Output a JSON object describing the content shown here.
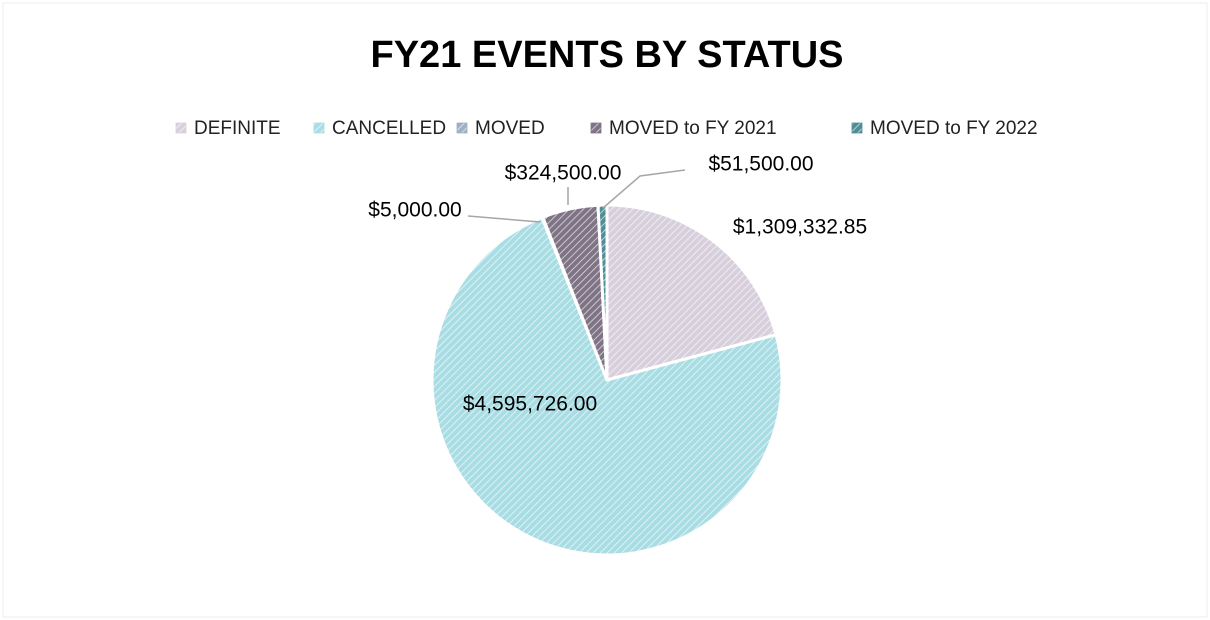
{
  "chart_data": {
    "type": "pie",
    "title": "FY21 EVENTS BY STATUS",
    "categories": [
      "DEFINITE",
      "CANCELLED",
      "MOVED",
      "MOVED to FY 2021",
      "MOVED to FY 2022"
    ],
    "values": [
      1309332.85,
      4595726,
      5000,
      324500,
      51500
    ],
    "value_labels": [
      "$1,309,332.85",
      "$4,595,726.00",
      "$5,000.00",
      "$324,500.00",
      "$51,500.00"
    ],
    "colors": [
      "#d8cfdc",
      "#a9dde4",
      "#9fb0c4",
      "#7e7486",
      "#4f8e97"
    ],
    "legend": "top"
  }
}
